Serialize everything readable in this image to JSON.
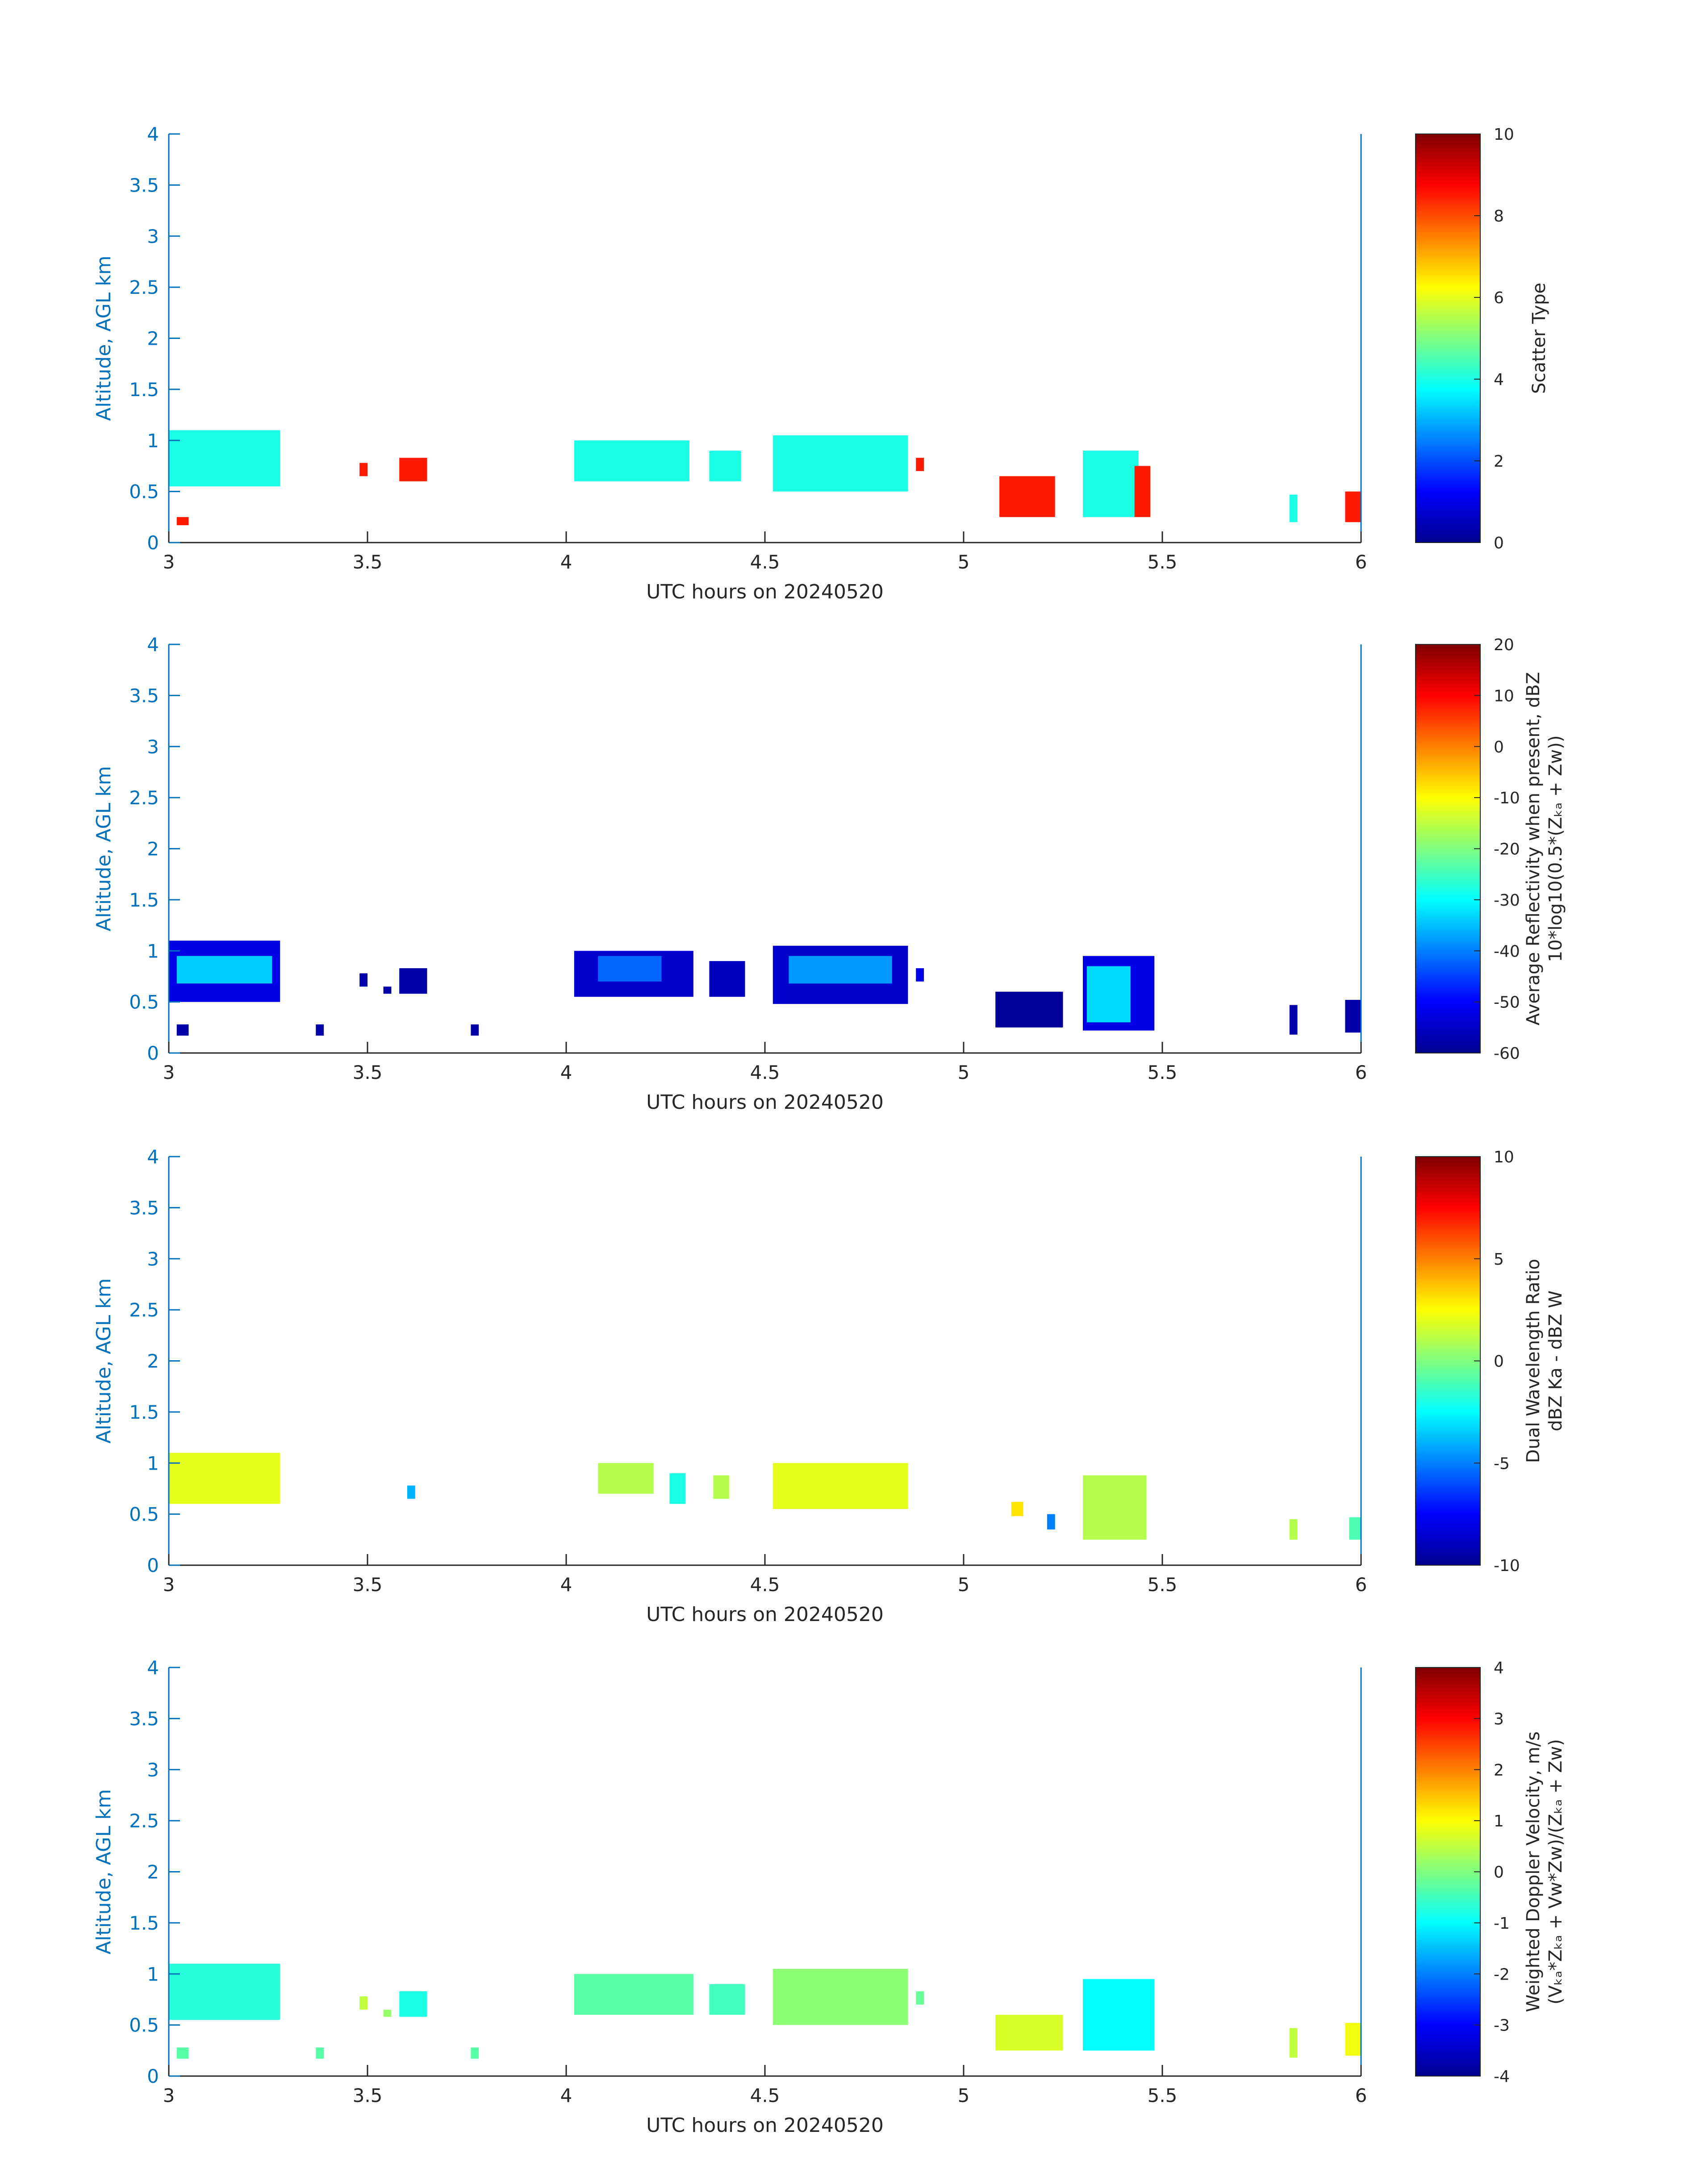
{
  "figure": {
    "panels": [
      {
        "ylabel": "Altitude, AGL km",
        "xlabel": "UTC hours on 20240520",
        "colorbar": {
          "title": "Scatter Type",
          "sub": "",
          "ticks": [
            "10",
            "8",
            "6",
            "4",
            "2",
            "0"
          ]
        }
      },
      {
        "ylabel": "Altitude, AGL km",
        "xlabel": "UTC hours on 20240520",
        "colorbar": {
          "title": "Average Reflectivity when present, dBZ",
          "sub": "10*log10(0.5*(Zₖₐ + Zᴡ))",
          "ticks": [
            "20",
            "10",
            "0",
            "-10",
            "-20",
            "-30",
            "-40",
            "-50",
            "-60"
          ]
        }
      },
      {
        "ylabel": "Altitude, AGL km",
        "xlabel": "UTC hours on 20240520",
        "colorbar": {
          "title": "Dual Wavelength Ratio",
          "sub": "dBZ Ka - dBZ W",
          "ticks": [
            "10",
            "5",
            "0",
            "-5",
            "-10"
          ]
        }
      },
      {
        "ylabel": "Altitude, AGL km",
        "xlabel": "UTC hours on 20240520",
        "colorbar": {
          "title": "Weighted Doppler Velocity, m/s",
          "sub": "(Vₖₐ*Zₖₐ + Vᴡ*Zᴡ)/(Zₖₐ + Zᴡ)",
          "ticks": [
            "4",
            "3",
            "2",
            "1",
            "0",
            "-1",
            "-2",
            "-3",
            "-4"
          ]
        }
      }
    ],
    "x_ticks": [
      "3",
      "3.5",
      "4",
      "4.5",
      "5",
      "5.5",
      "6"
    ],
    "y_ticks": [
      "0",
      "0.5",
      "1",
      "1.5",
      "2",
      "2.5",
      "3",
      "3.5",
      "4"
    ]
  },
  "chart_data": [
    {
      "type": "heatmap",
      "xlabel": "UTC hours on 20240520",
      "ylabel": "Altitude, AGL km",
      "xlim": [
        3,
        6
      ],
      "ylim": [
        0,
        4
      ],
      "colorbar_label": "Scatter Type",
      "clim": [
        0,
        10
      ],
      "blocks": [
        {
          "x0": 3.0,
          "x1": 3.28,
          "y0": 0.55,
          "y1": 1.1,
          "value": 4
        },
        {
          "x0": 3.02,
          "x1": 3.05,
          "y0": 0.17,
          "y1": 0.25,
          "value": 8.5
        },
        {
          "x0": 3.48,
          "x1": 3.5,
          "y0": 0.65,
          "y1": 0.78,
          "value": 8.5
        },
        {
          "x0": 3.58,
          "x1": 3.65,
          "y0": 0.6,
          "y1": 0.83,
          "value": 8.5
        },
        {
          "x0": 4.02,
          "x1": 4.31,
          "y0": 0.6,
          "y1": 1.0,
          "value": 4
        },
        {
          "x0": 4.36,
          "x1": 4.44,
          "y0": 0.6,
          "y1": 0.9,
          "value": 4
        },
        {
          "x0": 4.52,
          "x1": 4.86,
          "y0": 0.5,
          "y1": 1.05,
          "value": 4
        },
        {
          "x0": 4.88,
          "x1": 4.9,
          "y0": 0.7,
          "y1": 0.83,
          "value": 8.5
        },
        {
          "x0": 5.09,
          "x1": 5.23,
          "y0": 0.25,
          "y1": 0.65,
          "value": 8.5
        },
        {
          "x0": 5.3,
          "x1": 5.44,
          "y0": 0.25,
          "y1": 0.9,
          "value": 4
        },
        {
          "x0": 5.43,
          "x1": 5.47,
          "y0": 0.25,
          "y1": 0.75,
          "value": 8.5
        },
        {
          "x0": 5.82,
          "x1": 5.84,
          "y0": 0.2,
          "y1": 0.47,
          "value": 4
        },
        {
          "x0": 5.96,
          "x1": 6.0,
          "y0": 0.2,
          "y1": 0.5,
          "value": 8.5
        }
      ]
    },
    {
      "type": "heatmap",
      "xlabel": "UTC hours on 20240520",
      "ylabel": "Altitude, AGL km",
      "xlim": [
        3,
        6
      ],
      "ylim": [
        0,
        4
      ],
      "colorbar_label": "Average Reflectivity when present, dBZ",
      "clim": [
        -60,
        20
      ],
      "blocks": [
        {
          "x0": 3.0,
          "x1": 3.28,
          "y0": 0.5,
          "y1": 1.1,
          "value": -52
        },
        {
          "x0": 3.02,
          "x1": 3.26,
          "y0": 0.68,
          "y1": 0.95,
          "value": -34
        },
        {
          "x0": 3.02,
          "x1": 3.05,
          "y0": 0.17,
          "y1": 0.28,
          "value": -57
        },
        {
          "x0": 3.37,
          "x1": 3.39,
          "y0": 0.17,
          "y1": 0.28,
          "value": -57
        },
        {
          "x0": 3.48,
          "x1": 3.5,
          "y0": 0.65,
          "y1": 0.78,
          "value": -57
        },
        {
          "x0": 3.54,
          "x1": 3.56,
          "y0": 0.58,
          "y1": 0.65,
          "value": -57
        },
        {
          "x0": 3.58,
          "x1": 3.65,
          "y0": 0.58,
          "y1": 0.83,
          "value": -57
        },
        {
          "x0": 3.76,
          "x1": 3.78,
          "y0": 0.17,
          "y1": 0.28,
          "value": -57
        },
        {
          "x0": 4.02,
          "x1": 4.32,
          "y0": 0.55,
          "y1": 1.0,
          "value": -54
        },
        {
          "x0": 4.08,
          "x1": 4.24,
          "y0": 0.7,
          "y1": 0.95,
          "value": -42
        },
        {
          "x0": 4.36,
          "x1": 4.45,
          "y0": 0.55,
          "y1": 0.9,
          "value": -55
        },
        {
          "x0": 4.52,
          "x1": 4.86,
          "y0": 0.48,
          "y1": 1.05,
          "value": -54
        },
        {
          "x0": 4.56,
          "x1": 4.82,
          "y0": 0.68,
          "y1": 0.95,
          "value": -38
        },
        {
          "x0": 4.88,
          "x1": 4.9,
          "y0": 0.7,
          "y1": 0.83,
          "value": -52
        },
        {
          "x0": 5.08,
          "x1": 5.25,
          "y0": 0.25,
          "y1": 0.6,
          "value": -58
        },
        {
          "x0": 5.3,
          "x1": 5.48,
          "y0": 0.22,
          "y1": 0.95,
          "value": -52
        },
        {
          "x0": 5.31,
          "x1": 5.42,
          "y0": 0.3,
          "y1": 0.85,
          "value": -33
        },
        {
          "x0": 5.82,
          "x1": 5.84,
          "y0": 0.18,
          "y1": 0.47,
          "value": -57
        },
        {
          "x0": 5.96,
          "x1": 6.0,
          "y0": 0.2,
          "y1": 0.52,
          "value": -57
        }
      ]
    },
    {
      "type": "heatmap",
      "xlabel": "UTC hours on 20240520",
      "ylabel": "Altitude, AGL km",
      "xlim": [
        3,
        6
      ],
      "ylim": [
        0,
        4
      ],
      "colorbar_label": "Dual Wavelength Ratio",
      "clim": [
        -10,
        10
      ],
      "blocks": [
        {
          "x0": 3.0,
          "x1": 3.28,
          "y0": 0.6,
          "y1": 1.1,
          "value": 2
        },
        {
          "x0": 3.6,
          "x1": 3.62,
          "y0": 0.65,
          "y1": 0.78,
          "value": -4
        },
        {
          "x0": 4.08,
          "x1": 4.22,
          "y0": 0.7,
          "y1": 1.0,
          "value": 1
        },
        {
          "x0": 4.26,
          "x1": 4.3,
          "y0": 0.6,
          "y1": 0.9,
          "value": -2
        },
        {
          "x0": 4.37,
          "x1": 4.41,
          "y0": 0.65,
          "y1": 0.88,
          "value": 1
        },
        {
          "x0": 4.52,
          "x1": 4.86,
          "y0": 0.55,
          "y1": 1.0,
          "value": 2
        },
        {
          "x0": 5.12,
          "x1": 5.15,
          "y0": 0.48,
          "y1": 0.62,
          "value": 3
        },
        {
          "x0": 5.21,
          "x1": 5.23,
          "y0": 0.35,
          "y1": 0.5,
          "value": -5
        },
        {
          "x0": 5.3,
          "x1": 5.46,
          "y0": 0.25,
          "y1": 0.88,
          "value": 1
        },
        {
          "x0": 5.82,
          "x1": 5.84,
          "y0": 0.25,
          "y1": 0.45,
          "value": 1
        },
        {
          "x0": 5.97,
          "x1": 6.0,
          "y0": 0.25,
          "y1": 0.47,
          "value": -1
        }
      ]
    },
    {
      "type": "heatmap",
      "xlabel": "UTC hours on 20240520",
      "ylabel": "Altitude, AGL km",
      "xlim": [
        3,
        6
      ],
      "ylim": [
        0,
        4
      ],
      "colorbar_label": "Weighted Doppler Velocity, m/s",
      "clim": [
        -4,
        4
      ],
      "blocks": [
        {
          "x0": 3.0,
          "x1": 3.28,
          "y0": 0.55,
          "y1": 1.1,
          "value": -0.7
        },
        {
          "x0": 3.02,
          "x1": 3.05,
          "y0": 0.17,
          "y1": 0.28,
          "value": -0.3
        },
        {
          "x0": 3.37,
          "x1": 3.39,
          "y0": 0.17,
          "y1": 0.28,
          "value": -0.3
        },
        {
          "x0": 3.48,
          "x1": 3.5,
          "y0": 0.65,
          "y1": 0.78,
          "value": 0.5
        },
        {
          "x0": 3.54,
          "x1": 3.56,
          "y0": 0.58,
          "y1": 0.65,
          "value": 0.2
        },
        {
          "x0": 3.58,
          "x1": 3.65,
          "y0": 0.58,
          "y1": 0.83,
          "value": -0.8
        },
        {
          "x0": 3.76,
          "x1": 3.78,
          "y0": 0.17,
          "y1": 0.28,
          "value": -0.3
        },
        {
          "x0": 4.02,
          "x1": 4.32,
          "y0": 0.6,
          "y1": 1.0,
          "value": -0.3
        },
        {
          "x0": 4.36,
          "x1": 4.45,
          "y0": 0.6,
          "y1": 0.9,
          "value": -0.5
        },
        {
          "x0": 4.52,
          "x1": 4.86,
          "y0": 0.5,
          "y1": 1.05,
          "value": 0.1
        },
        {
          "x0": 4.88,
          "x1": 4.9,
          "y0": 0.7,
          "y1": 0.83,
          "value": -0.2
        },
        {
          "x0": 5.08,
          "x1": 5.25,
          "y0": 0.25,
          "y1": 0.6,
          "value": 0.7
        },
        {
          "x0": 5.3,
          "x1": 5.48,
          "y0": 0.25,
          "y1": 0.95,
          "value": -1.0
        },
        {
          "x0": 5.82,
          "x1": 5.84,
          "y0": 0.18,
          "y1": 0.47,
          "value": 0.5
        },
        {
          "x0": 5.96,
          "x1": 6.0,
          "y0": 0.2,
          "y1": 0.52,
          "value": 0.9
        }
      ]
    }
  ]
}
